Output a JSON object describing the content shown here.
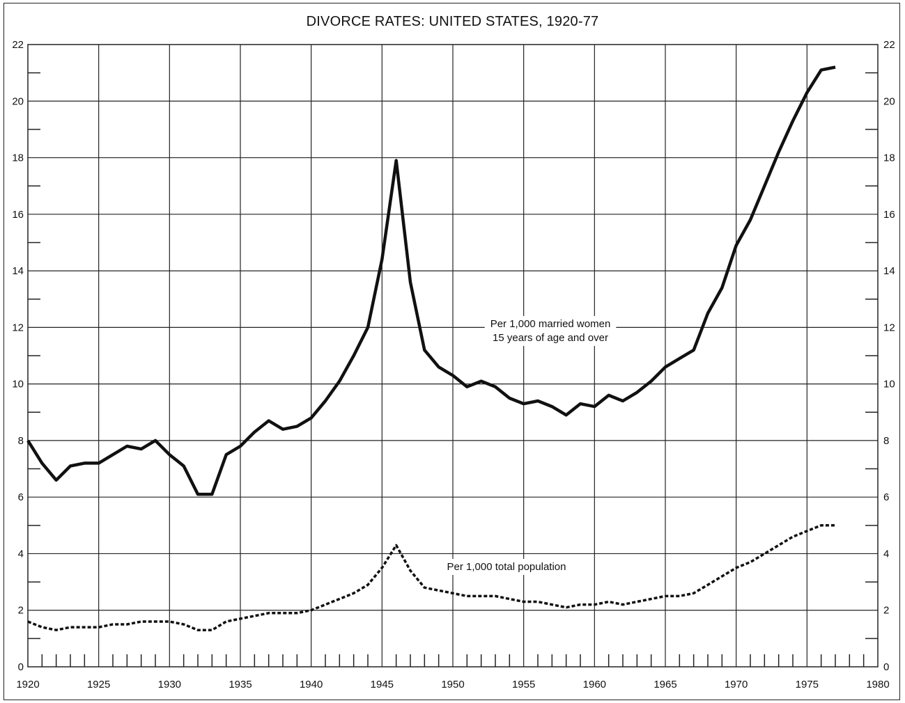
{
  "chart_data": {
    "type": "line",
    "title": "DIVORCE RATES: UNITED STATES, 1920-77",
    "xlim": [
      1920,
      1980
    ],
    "ylim": [
      0,
      22
    ],
    "x_ticks": [
      "1920",
      "1925",
      "1930",
      "1935",
      "1940",
      "1945",
      "1950",
      "1955",
      "1960",
      "1965",
      "1970",
      "1975",
      "1980"
    ],
    "y_ticks": [
      "0",
      "2",
      "4",
      "6",
      "8",
      "10",
      "12",
      "14",
      "16",
      "18",
      "20",
      "22"
    ],
    "grid": true,
    "annotations": [
      {
        "lines": [
          "Per 1,000 married women",
          "15 years of age and over"
        ]
      },
      {
        "lines": [
          "Per 1,000 total population"
        ]
      }
    ],
    "series": [
      {
        "style": "solid",
        "x": [
          1920,
          1921,
          1922,
          1923,
          1924,
          1925,
          1926,
          1927,
          1928,
          1929,
          1930,
          1931,
          1932,
          1933,
          1934,
          1935,
          1936,
          1937,
          1938,
          1939,
          1940,
          1941,
          1942,
          1943,
          1944,
          1945,
          1946,
          1947,
          1948,
          1949,
          1950,
          1951,
          1952,
          1953,
          1954,
          1955,
          1956,
          1957,
          1958,
          1959,
          1960,
          1961,
          1962,
          1963,
          1964,
          1965,
          1966,
          1967,
          1968,
          1969,
          1970,
          1971,
          1972,
          1973,
          1974,
          1975,
          1976,
          1977
        ],
        "values": [
          8.0,
          7.2,
          6.6,
          7.1,
          7.2,
          7.2,
          7.5,
          7.8,
          7.7,
          8.0,
          7.5,
          7.1,
          6.1,
          6.1,
          7.5,
          7.8,
          8.3,
          8.7,
          8.4,
          8.5,
          8.8,
          9.4,
          10.1,
          11.0,
          12.0,
          14.4,
          17.9,
          13.6,
          11.2,
          10.6,
          10.3,
          9.9,
          10.1,
          9.9,
          9.5,
          9.3,
          9.4,
          9.2,
          8.9,
          9.3,
          9.2,
          9.6,
          9.4,
          9.7,
          10.1,
          10.6,
          10.9,
          11.2,
          12.5,
          13.4,
          14.9,
          15.8,
          17.0,
          18.2,
          19.3,
          20.3,
          21.1,
          21.2
        ]
      },
      {
        "style": "dashed",
        "x": [
          1920,
          1921,
          1922,
          1923,
          1924,
          1925,
          1926,
          1927,
          1928,
          1929,
          1930,
          1931,
          1932,
          1933,
          1934,
          1935,
          1936,
          1937,
          1938,
          1939,
          1940,
          1941,
          1942,
          1943,
          1944,
          1945,
          1946,
          1947,
          1948,
          1949,
          1950,
          1951,
          1952,
          1953,
          1954,
          1955,
          1956,
          1957,
          1958,
          1959,
          1960,
          1961,
          1962,
          1963,
          1964,
          1965,
          1966,
          1967,
          1968,
          1969,
          1970,
          1971,
          1972,
          1973,
          1974,
          1975,
          1976,
          1977
        ],
        "values": [
          1.6,
          1.4,
          1.3,
          1.4,
          1.4,
          1.4,
          1.5,
          1.5,
          1.6,
          1.6,
          1.6,
          1.5,
          1.3,
          1.3,
          1.6,
          1.7,
          1.8,
          1.9,
          1.9,
          1.9,
          2.0,
          2.2,
          2.4,
          2.6,
          2.9,
          3.5,
          4.3,
          3.4,
          2.8,
          2.7,
          2.6,
          2.5,
          2.5,
          2.5,
          2.4,
          2.3,
          2.3,
          2.2,
          2.1,
          2.2,
          2.2,
          2.3,
          2.2,
          2.3,
          2.4,
          2.5,
          2.5,
          2.6,
          2.9,
          3.2,
          3.5,
          3.7,
          4.0,
          4.3,
          4.6,
          4.8,
          5.0,
          5.0
        ]
      }
    ]
  }
}
